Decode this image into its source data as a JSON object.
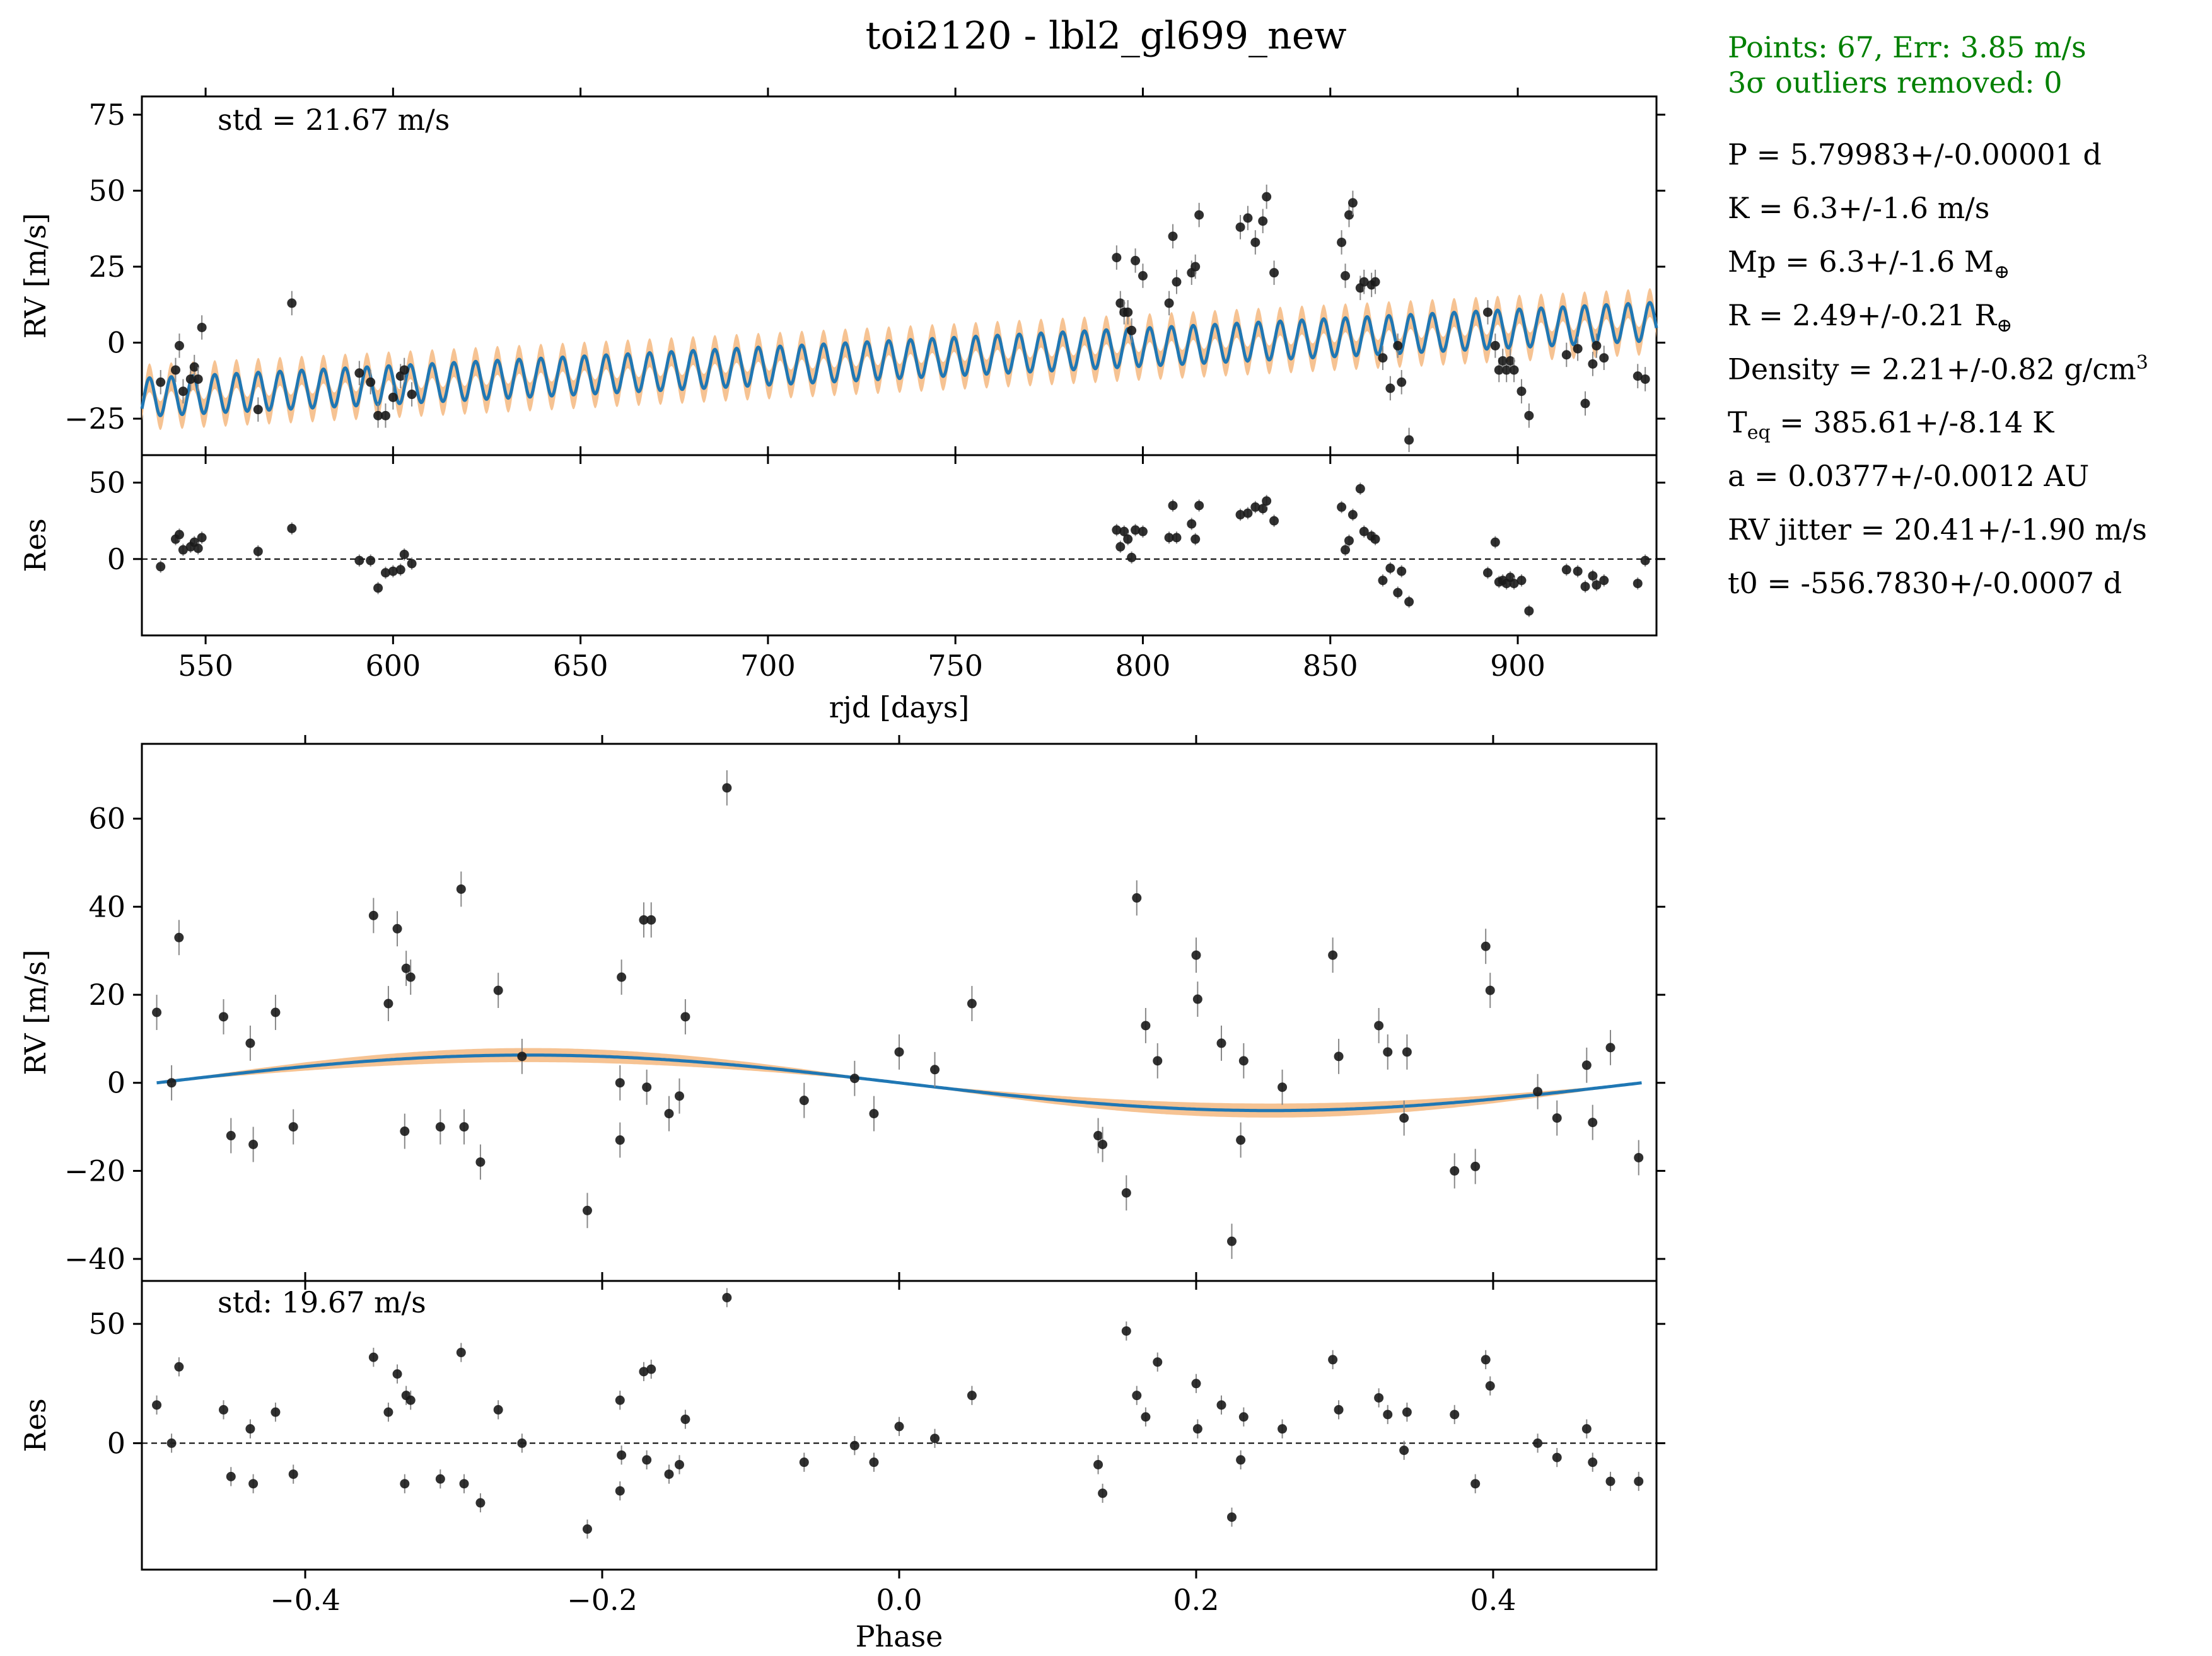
{
  "title": "toi2120  -  lbl2_gl699_new",
  "stats": {
    "line1": "Points: 67, Err: 3.85 m/s",
    "line2": "3σ outliers removed: 0",
    "P": "P = 5.79983+/-0.00001 d",
    "K": "K = 6.3+/-1.6 m/s",
    "Mp_prefix": "Mp = 6.3+/-1.6 M",
    "Mp_sub": "⊕",
    "R_prefix": "R = 2.49+/-0.21 R",
    "R_sub": "⊕",
    "Density_prefix": "Density = 2.21+/-0.82 g/cm",
    "Density_sup": "3",
    "Teq_prefix": "T",
    "Teq_sub": "eq",
    "Teq_rest": " = 385.61+/-8.14 K",
    "a": "a = 0.0377+/-0.0012 AU",
    "jitter": "RV jitter = 20.41+/-1.90 m/s",
    "t0": "t0 = -556.7830+/-0.0007 d"
  },
  "colors": {
    "model": "#1f77b4",
    "band": "#f5b880",
    "points": "#1a1a1a",
    "stats": "#008000"
  },
  "chart_data": [
    {
      "type": "scatter",
      "panel": "time-series",
      "annotation": "std = 21.67 m/s",
      "xlabel": "rjd [days]",
      "ylabel": "RV [m/s]",
      "xlim": [
        533,
        937
      ],
      "ylim": [
        -37,
        81
      ],
      "xticks": [
        550,
        600,
        650,
        700,
        750,
        800,
        850,
        900
      ],
      "yticks": [
        -25,
        0,
        25,
        50,
        75
      ],
      "model": {
        "period": 5.79983,
        "K": 6.3,
        "t0": -556.783,
        "trend_start": -18,
        "trend_end": 7,
        "band_halfwidth": 2.5,
        "x_start": 533,
        "x_end": 937
      },
      "x": [
        538,
        542,
        543,
        544,
        546,
        547,
        548,
        549,
        564,
        573,
        591,
        594,
        596,
        598,
        600,
        602,
        603,
        605,
        793,
        794,
        795,
        796,
        797,
        798,
        800,
        807,
        808,
        809,
        813,
        814,
        815,
        826,
        828,
        830,
        832,
        833,
        835,
        853,
        854,
        855,
        856,
        858,
        859,
        861,
        862,
        864,
        866,
        868,
        869,
        871,
        892,
        894,
        895,
        896,
        897,
        898,
        899,
        901,
        903,
        913,
        916,
        918,
        920,
        921,
        923,
        932,
        934
      ],
      "y": [
        -13,
        -9,
        -1,
        -16,
        -12,
        -8,
        -12,
        5,
        -22,
        13,
        -10,
        -13,
        -24,
        -24,
        -18,
        -11,
        -9,
        -17,
        28,
        13,
        10,
        10,
        4,
        27,
        22,
        13,
        35,
        20,
        23,
        25,
        42,
        38,
        41,
        33,
        40,
        48,
        23,
        33,
        22,
        42,
        46,
        18,
        20,
        19,
        20,
        -5,
        -15,
        -1,
        -13,
        -32,
        10,
        -1,
        -9,
        -6,
        -9,
        -6,
        -9,
        -16,
        -24,
        -4,
        -2,
        -20,
        -7,
        -1,
        -5,
        -11,
        -12
      ],
      "yerr": 4
    },
    {
      "type": "scatter",
      "panel": "time-series-residuals",
      "ylabel": "Res",
      "xlim": [
        533,
        937
      ],
      "ylim": [
        -50,
        68
      ],
      "yticks": [
        0,
        50
      ],
      "x": [
        538,
        542,
        543,
        544,
        546,
        547,
        548,
        549,
        564,
        573,
        591,
        594,
        596,
        598,
        600,
        602,
        603,
        605,
        793,
        794,
        795,
        796,
        797,
        798,
        800,
        807,
        808,
        809,
        813,
        814,
        815,
        826,
        828,
        830,
        832,
        833,
        835,
        853,
        854,
        855,
        856,
        858,
        859,
        861,
        862,
        864,
        866,
        868,
        869,
        871,
        892,
        894,
        895,
        896,
        897,
        898,
        899,
        901,
        903,
        913,
        916,
        918,
        920,
        921,
        923,
        932,
        934
      ],
      "y": [
        -5,
        13,
        16,
        6,
        8,
        11,
        7,
        14,
        5,
        20,
        -1,
        -1,
        -19,
        -9,
        -8,
        -7,
        3,
        -3,
        19,
        8,
        18,
        13,
        1,
        19,
        18,
        14,
        35,
        14,
        23,
        13,
        35,
        29,
        30,
        34,
        33,
        38,
        25,
        34,
        6,
        12,
        29,
        46,
        18,
        15,
        13,
        -14,
        -6,
        -22,
        -8,
        -28,
        -9,
        11,
        -15,
        -14,
        -16,
        -12,
        -16,
        -14,
        -34,
        -7,
        -8,
        -18,
        -11,
        -17,
        -14,
        -16,
        -1
      ],
      "yerr": 4
    },
    {
      "type": "scatter",
      "panel": "phase-folded",
      "xlabel": "Phase",
      "ylabel": "RV [m/s]",
      "xlim": [
        -0.51,
        0.51
      ],
      "ylim": [
        -45,
        77
      ],
      "xticks": [
        -0.4,
        -0.2,
        0.0,
        0.2,
        0.4
      ],
      "yticks": [
        -40,
        -20,
        0,
        20,
        40,
        60
      ],
      "model": {
        "K": 6.3,
        "band_halfwidth": 1.6
      },
      "x": [
        -0.5,
        -0.49,
        -0.485,
        -0.455,
        -0.45,
        -0.437,
        -0.435,
        -0.42,
        -0.408,
        -0.354,
        -0.344,
        -0.338,
        -0.333,
        -0.332,
        -0.329,
        -0.309,
        -0.295,
        -0.293,
        -0.282,
        -0.27,
        -0.254,
        -0.21,
        -0.188,
        -0.188,
        -0.187,
        -0.172,
        -0.17,
        -0.167,
        -0.155,
        -0.148,
        -0.144,
        -0.116,
        -0.064,
        -0.03,
        -0.017,
        0.0,
        0.024,
        0.049,
        0.134,
        0.137,
        0.153,
        0.16,
        0.166,
        0.174,
        0.2,
        0.201,
        0.217,
        0.224,
        0.23,
        0.232,
        0.258,
        0.292,
        0.296,
        0.323,
        0.329,
        0.34,
        0.342,
        0.374,
        0.388,
        0.395,
        0.398,
        0.43,
        0.443,
        0.463,
        0.467,
        0.479,
        0.498
      ],
      "y": [
        16,
        0,
        33,
        15,
        -12,
        9,
        -14,
        16,
        -10,
        38,
        18,
        35,
        -11,
        26,
        24,
        -10,
        44,
        -10,
        -18,
        21,
        6,
        -29,
        -13,
        0,
        24,
        37,
        -1,
        37,
        -7,
        -3,
        15,
        67,
        -4,
        1,
        -7,
        7,
        3,
        18,
        -12,
        -14,
        -25,
        42,
        13,
        5,
        29,
        19,
        9,
        -36,
        -13,
        5,
        -1,
        29,
        6,
        13,
        7,
        -8,
        7,
        -20,
        -19,
        31,
        21,
        -2,
        -8,
        4,
        -9,
        8,
        -17
      ],
      "yerr": 4
    },
    {
      "type": "scatter",
      "panel": "phase-residuals",
      "annotation": "std: 19.67 m/s",
      "ylabel": "Res",
      "xlim": [
        -0.51,
        0.51
      ],
      "ylim": [
        -53,
        68
      ],
      "yticks": [
        0,
        50
      ],
      "x": [
        -0.5,
        -0.49,
        -0.485,
        -0.455,
        -0.45,
        -0.437,
        -0.435,
        -0.42,
        -0.408,
        -0.354,
        -0.344,
        -0.338,
        -0.333,
        -0.332,
        -0.329,
        -0.309,
        -0.295,
        -0.293,
        -0.282,
        -0.27,
        -0.254,
        -0.21,
        -0.188,
        -0.188,
        -0.187,
        -0.172,
        -0.17,
        -0.167,
        -0.155,
        -0.148,
        -0.144,
        -0.116,
        -0.064,
        -0.03,
        -0.017,
        0.0,
        0.024,
        0.049,
        0.134,
        0.137,
        0.153,
        0.16,
        0.166,
        0.174,
        0.2,
        0.201,
        0.217,
        0.224,
        0.23,
        0.232,
        0.258,
        0.292,
        0.296,
        0.323,
        0.329,
        0.34,
        0.342,
        0.374,
        0.388,
        0.395,
        0.398,
        0.43,
        0.443,
        0.463,
        0.467,
        0.479,
        0.498
      ],
      "y": [
        16,
        0,
        32,
        14,
        -14,
        6,
        -17,
        13,
        -13,
        36,
        13,
        29,
        -17,
        20,
        18,
        -15,
        38,
        -17,
        -25,
        14,
        0,
        -36,
        -20,
        18,
        -5,
        30,
        -7,
        31,
        -13,
        -9,
        10,
        61,
        -8,
        -1,
        -8,
        7,
        2,
        20,
        -9,
        -21,
        47,
        20,
        11,
        34,
        25,
        6,
        16,
        -31,
        -7,
        11,
        6,
        35,
        14,
        19,
        12,
        -3,
        13,
        12,
        -17,
        35,
        24,
        0,
        -6,
        6,
        -8,
        -16,
        -16
      ],
      "yerr": 4
    }
  ]
}
